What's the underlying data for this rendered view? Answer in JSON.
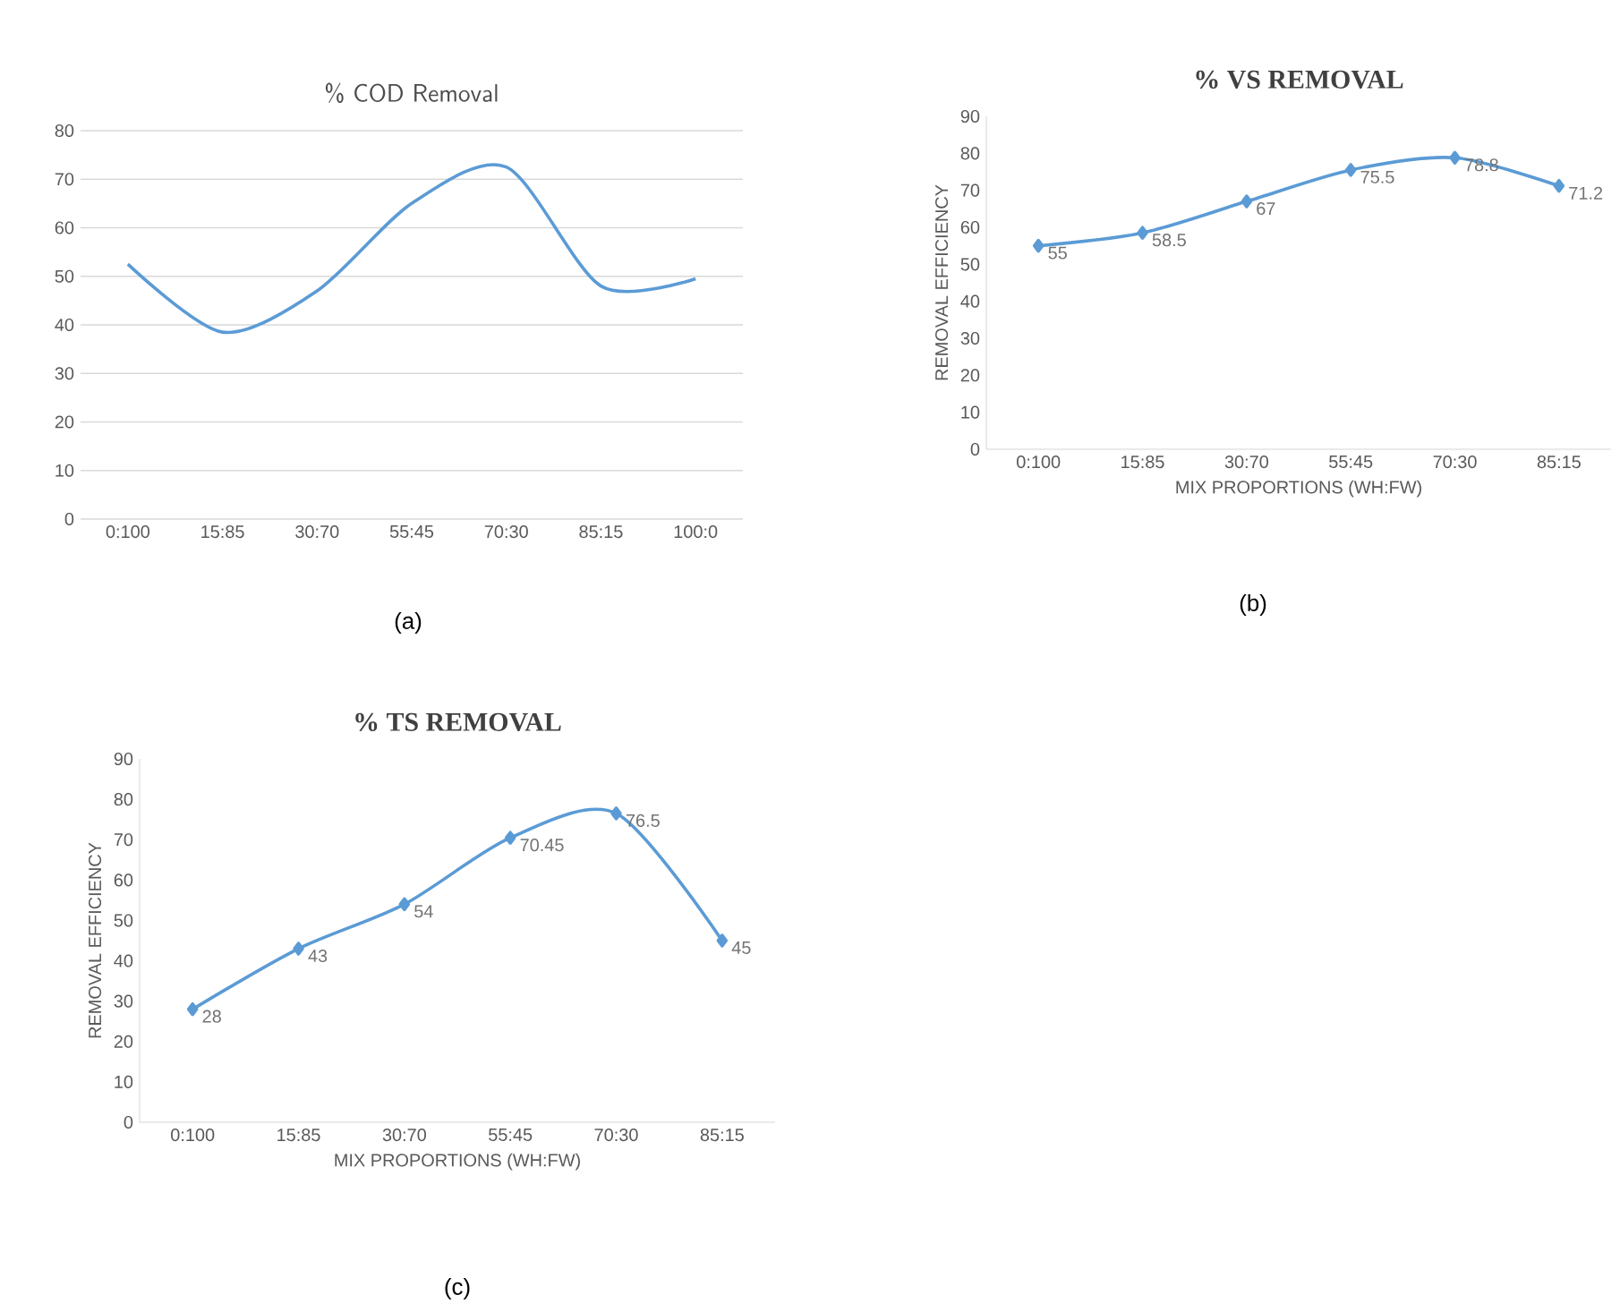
{
  "chart_data": [
    {
      "type": "line",
      "title": "% COD Removal",
      "categories": [
        "0:100",
        "15:85",
        "30:70",
        "55:45",
        "70:30",
        "85:15",
        "100:0"
      ],
      "values": [
        52.5,
        38.5,
        47,
        65,
        72.5,
        48,
        49.5
      ],
      "color": "#5b9bd5",
      "ylim": [
        0,
        80
      ],
      "yticks": [
        0,
        10,
        20,
        30,
        40,
        50,
        60,
        70,
        80
      ],
      "grid": "y",
      "annotations": [
        "(a)"
      ]
    },
    {
      "type": "line",
      "title": "% VS REMOVAL",
      "xlabel": "MIX PROPORTIONS (WH:FW)",
      "ylabel": "REMOVAL EFFICIENCY",
      "categories": [
        "0:100",
        "15:85",
        "30:70",
        "55:45",
        "70:30",
        "85:15"
      ],
      "values": [
        55,
        58.5,
        67,
        75.5,
        78.8,
        71.2
      ],
      "color": "#5b9bd5",
      "ylim": [
        0,
        90
      ],
      "yticks": [
        0,
        10,
        20,
        30,
        40,
        50,
        60,
        70,
        80,
        90
      ],
      "marker": "diamond",
      "data_labels": true,
      "annotations": [
        "(b)"
      ]
    },
    {
      "type": "line",
      "title": "% TS REMOVAL",
      "xlabel": "MIX PROPORTIONS (WH:FW)",
      "ylabel": "REMOVAL EFFICIENCY",
      "categories": [
        "0:100",
        "15:85",
        "30:70",
        "55:45",
        "70:30",
        "85:15"
      ],
      "values": [
        28,
        43,
        54,
        70.45,
        76.5,
        45
      ],
      "color": "#5b9bd5",
      "ylim": [
        0,
        90
      ],
      "yticks": [
        0,
        10,
        20,
        30,
        40,
        50,
        60,
        70,
        80,
        90
      ],
      "marker": "diamond",
      "data_labels": true,
      "annotations": [
        "(c)"
      ]
    }
  ]
}
